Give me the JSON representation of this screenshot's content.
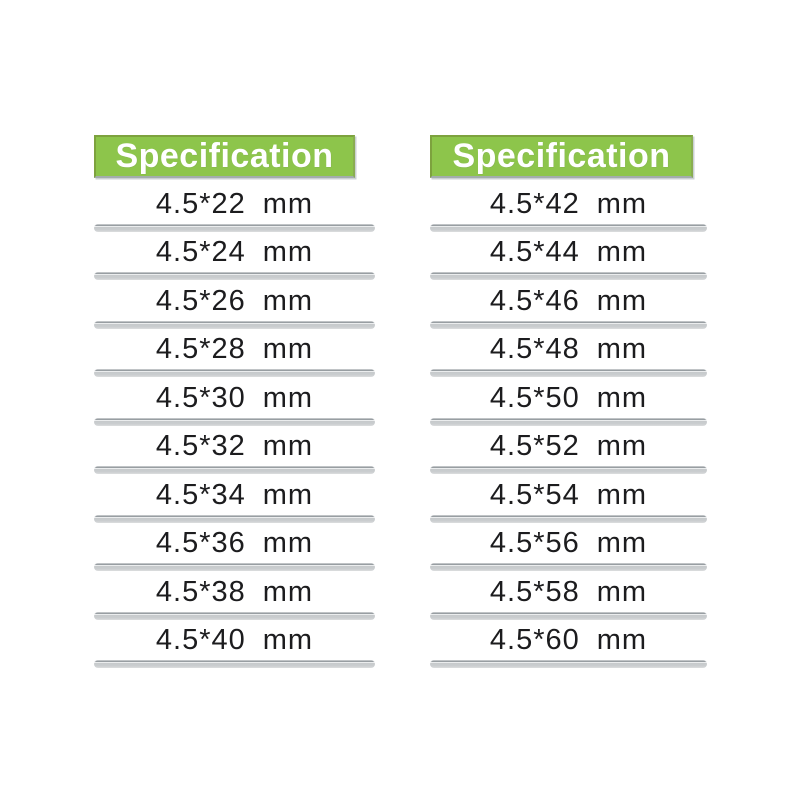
{
  "page": {
    "background_color": "#ffffff",
    "text_color": "#1c1c1e"
  },
  "colors": {
    "header_background": "#8dc54b",
    "header_border": "#7da23e",
    "header_text": "#ffffff",
    "separator_gray": "#c9ccce"
  },
  "chart_data": [
    {
      "type": "table",
      "title": "Specification",
      "legend_position": "none",
      "rows": [
        {
          "size": "4.5*22",
          "unit": "mm"
        },
        {
          "size": "4.5*24",
          "unit": "mm"
        },
        {
          "size": "4.5*26",
          "unit": "mm"
        },
        {
          "size": "4.5*28",
          "unit": "mm"
        },
        {
          "size": "4.5*30",
          "unit": "mm"
        },
        {
          "size": "4.5*32",
          "unit": "mm"
        },
        {
          "size": "4.5*34",
          "unit": "mm"
        },
        {
          "size": "4.5*36",
          "unit": "mm"
        },
        {
          "size": "4.5*38",
          "unit": "mm"
        },
        {
          "size": "4.5*40",
          "unit": "mm"
        }
      ]
    },
    {
      "type": "table",
      "title": "Specification",
      "legend_position": "none",
      "rows": [
        {
          "size": "4.5*42",
          "unit": "mm"
        },
        {
          "size": "4.5*44",
          "unit": "mm"
        },
        {
          "size": "4.5*46",
          "unit": "mm"
        },
        {
          "size": "4.5*48",
          "unit": "mm"
        },
        {
          "size": "4.5*50",
          "unit": "mm"
        },
        {
          "size": "4.5*52",
          "unit": "mm"
        },
        {
          "size": "4.5*54",
          "unit": "mm"
        },
        {
          "size": "4.5*56",
          "unit": "mm"
        },
        {
          "size": "4.5*58",
          "unit": "mm"
        },
        {
          "size": "4.5*60",
          "unit": "mm"
        }
      ]
    }
  ]
}
